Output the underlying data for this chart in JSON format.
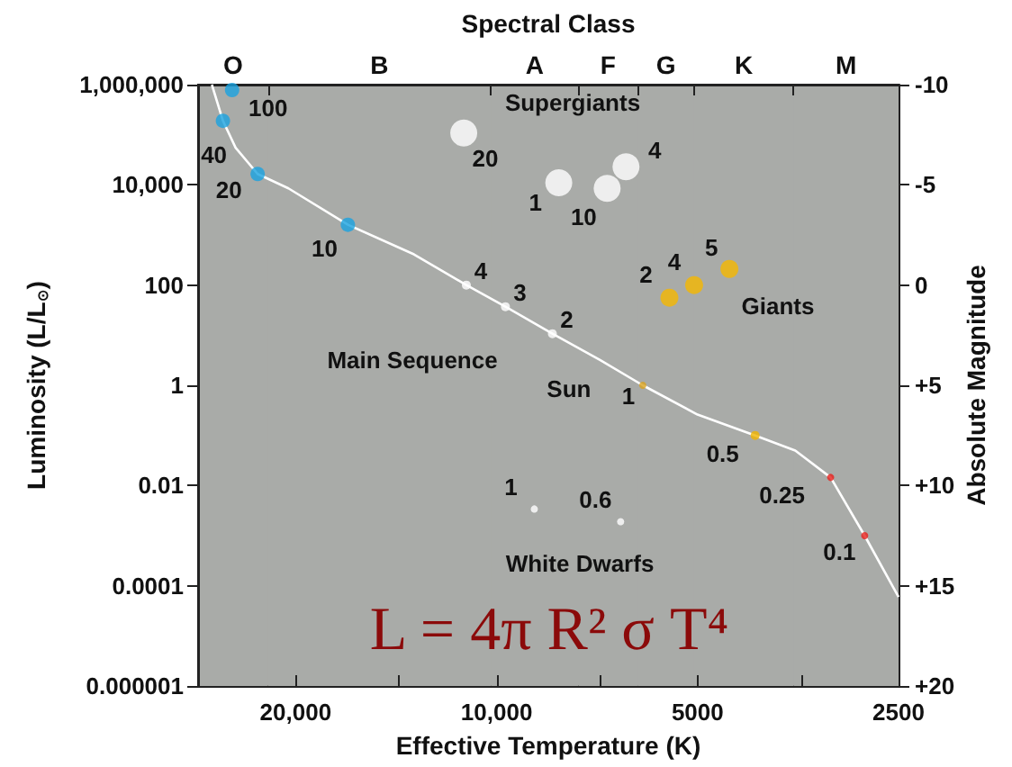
{
  "chart_data": {
    "type": "scatter",
    "xlabel": "Effective Temperature (K)",
    "x2label": "Spectral Class",
    "ylabel": "Luminosity (L/L$_{⊙}$)",
    "y2label": "Absolute Magnitude",
    "log": "xy",
    "xlim": [
      28000,
      2500
    ],
    "ylim": [
      1e-06,
      1000000
    ],
    "y2lim": [
      20,
      -10
    ],
    "xticks": [
      {
        "value": 20000,
        "label": "20,000"
      },
      {
        "value": 14000,
        "label": null
      },
      {
        "value": 10000,
        "label": "10,000"
      },
      {
        "value": 7000,
        "label": null
      },
      5000,
      {
        "value": 3500,
        "label": null
      },
      2500
    ],
    "yticks": [
      {
        "value": 1000000,
        "label": "1,000,000"
      },
      {
        "value": 10000,
        "label": "10,000"
      },
      100,
      1,
      0.01,
      0.0001,
      {
        "value": 1e-06,
        "label": "0.000001"
      }
    ],
    "y2ticks": [
      -10,
      -5,
      0,
      {
        "value": 5,
        "label": "+5"
      },
      {
        "value": 10,
        "label": "+10"
      },
      {
        "value": 15,
        "label": "+15"
      },
      {
        "value": 20,
        "label": "+20"
      }
    ],
    "grid": false,
    "marker": "circle",
    "bands": [
      {
        "axis": "x",
        "from": 28000,
        "to": 22000,
        "label": "O",
        "color": "#a9aba8"
      },
      {
        "axis": "x",
        "from": 22000,
        "to": 10200,
        "label": "B",
        "color": "#a9aba8"
      },
      {
        "axis": "x",
        "from": 10200,
        "to": 7540,
        "label": "A",
        "color": "#a9aba8"
      },
      {
        "axis": "x",
        "from": 7540,
        "to": 6150,
        "label": "F",
        "color": "#a9aba8"
      },
      {
        "axis": "x",
        "from": 6150,
        "to": 5060,
        "label": "G",
        "color": "#a9aba8"
      },
      {
        "axis": "x",
        "from": 5060,
        "to": 3590,
        "label": "K",
        "color": "#a9aba8"
      },
      {
        "axis": "x",
        "from": 3590,
        "to": 2500,
        "label": "M",
        "color": "#a9aba8"
      }
    ],
    "series": [
      {
        "type": "line",
        "marker": "none",
        "color": "#ffffff",
        "x": [
          26700,
          25700,
          24600,
          22800,
          20500,
          16700,
          13300,
          11100,
          9700,
          8250,
          7000,
          6040,
          5000,
          4100,
          3570,
          3160,
          2810,
          2500
        ],
        "values": [
          1000000,
          190000,
          55000,
          16500,
          8500,
          1600,
          410,
          100,
          37,
          10.7,
          3.2,
          1,
          0.26,
          0.1,
          0.05,
          0.0145,
          0.001,
          6e-05
        ]
      },
      {
        "color": "#1aa3e0",
        "x": [
          24900,
          25700,
          22800,
          16700
        ],
        "values": [
          780000,
          190000,
          16500,
          1600
        ]
      },
      {
        "color": "#ffffff",
        "x": [
          11100,
          9700,
          8250
        ],
        "values": [
          100,
          37,
          10.7
        ]
      },
      {
        "color": "#d9a21f",
        "x": [
          6040
        ],
        "values": [
          1
        ]
      },
      {
        "color": "#f0b400",
        "x": [
          4100
        ],
        "values": [
          0.1
        ]
      },
      {
        "color": "#e8201c",
        "x": [
          3160,
          2810
        ],
        "values": [
          0.0145,
          0.001
        ]
      },
      {
        "color": "#ffffff",
        "x": [
          11200,
          8070,
          6830,
          6400
        ],
        "values": [
          108000,
          11000,
          8500,
          23000
        ]
      },
      {
        "color": "#f5b800",
        "x": [
          5510,
          5060,
          4480
        ],
        "values": [
          56,
          100,
          210
        ]
      },
      {
        "color": "#ffffff",
        "x": [
          8780,
          6520
        ],
        "values": [
          0.0034,
          0.0019
        ]
      }
    ],
    "annotations": [
      {
        "text": "100",
        "x": 24900,
        "y": 780000
      },
      {
        "text": "40",
        "x": 25700,
        "y": 190000
      },
      {
        "text": "20",
        "x": 22800,
        "y": 16500
      },
      {
        "text": "10",
        "x": 16700,
        "y": 1600
      },
      {
        "text": "4",
        "x": 11100,
        "y": 100
      },
      {
        "text": "3",
        "x": 9700,
        "y": 37
      },
      {
        "text": "2",
        "x": 8250,
        "y": 10.7
      },
      {
        "text": "1",
        "x": 6040,
        "y": 1
      },
      {
        "text": "0.5",
        "x": 4100,
        "y": 0.1
      },
      {
        "text": "0.25",
        "x": 3160,
        "y": 0.0145
      },
      {
        "text": "0.1",
        "x": 2810,
        "y": 0.001
      },
      {
        "text": "20",
        "x": 11200,
        "y": 108000
      },
      {
        "text": "1",
        "x": 8070,
        "y": 11000
      },
      {
        "text": "10",
        "x": 6830,
        "y": 8500
      },
      {
        "text": "4",
        "x": 6400,
        "y": 23000
      },
      {
        "text": "2",
        "x": 5510,
        "y": 56
      },
      {
        "text": "4",
        "x": 5060,
        "y": 100
      },
      {
        "text": "5",
        "x": 4480,
        "y": 210
      },
      {
        "text": "1",
        "x": 8780,
        "y": 0.0034
      },
      {
        "text": "0.6",
        "x": 6520,
        "y": 0.0019
      },
      {
        "text": "Sun",
        "x": 6040,
        "y": 1
      },
      "Supergiants",
      "Giants",
      "Main Sequence",
      "White Dwarfs",
      "L = 4π R² σ T⁴"
    ]
  }
}
